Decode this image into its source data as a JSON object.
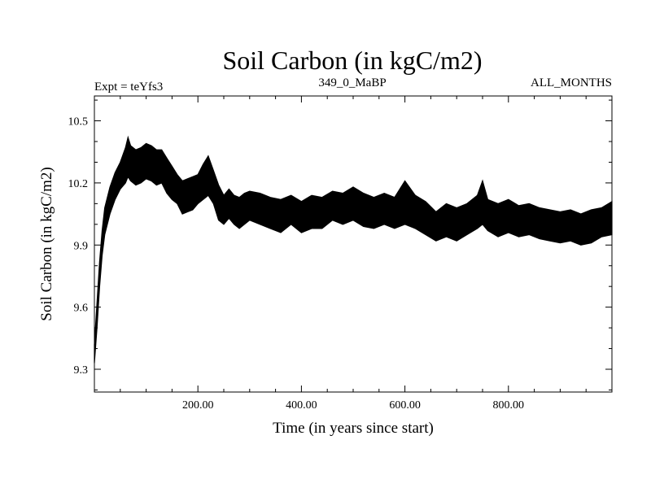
{
  "chart_data": {
    "type": "line",
    "title": "Soil Carbon (in kgC/m2)",
    "subtitle_left": "Expt = teYfs3",
    "subtitle_center": "349_0_MaBP",
    "subtitle_right": "ALL_MONTHS",
    "xlabel": "Time (in years since start)",
    "ylabel": "Soil Carbon (in kgC/m2)",
    "xlim": [
      0,
      1000
    ],
    "ylim": [
      9.19,
      10.62
    ],
    "xticks": [
      200,
      400,
      600,
      800
    ],
    "xtick_labels": [
      "200.00",
      "400.00",
      "600.00",
      "800.00"
    ],
    "yticks": [
      9.3,
      9.6,
      9.9,
      10.2,
      10.5
    ],
    "ytick_labels": [
      "9.3",
      "9.6",
      "9.9",
      "10.2",
      "10.5"
    ],
    "grid": false,
    "line_color": "#000000",
    "series": [
      {
        "x": [
          0,
          5,
          10,
          15,
          20,
          30,
          40,
          50,
          60,
          65,
          70,
          80,
          90,
          100,
          110,
          120,
          130,
          140,
          150,
          160,
          170,
          180,
          190,
          200,
          210,
          220,
          230,
          240,
          250,
          260,
          270,
          280,
          290,
          300,
          320,
          340,
          360,
          380,
          400,
          420,
          440,
          460,
          480,
          500,
          520,
          540,
          560,
          580,
          600,
          620,
          640,
          660,
          680,
          700,
          720,
          740,
          750,
          760,
          780,
          800,
          820,
          840,
          860,
          880,
          900,
          920,
          940,
          960,
          980,
          1000
        ],
        "y_low": [
          9.33,
          9.5,
          9.7,
          9.85,
          9.95,
          10.05,
          10.12,
          10.17,
          10.2,
          10.23,
          10.21,
          10.19,
          10.2,
          10.22,
          10.21,
          10.19,
          10.2,
          10.15,
          10.12,
          10.1,
          10.05,
          10.06,
          10.07,
          10.1,
          10.12,
          10.14,
          10.1,
          10.02,
          10.0,
          10.03,
          10.0,
          9.98,
          10.0,
          10.02,
          10.0,
          9.98,
          9.96,
          10.0,
          9.96,
          9.98,
          9.98,
          10.02,
          10.0,
          10.02,
          9.99,
          9.98,
          10.0,
          9.98,
          10.0,
          9.98,
          9.95,
          9.92,
          9.94,
          9.92,
          9.95,
          9.98,
          10.0,
          9.97,
          9.94,
          9.96,
          9.94,
          9.95,
          9.93,
          9.92,
          9.91,
          9.92,
          9.9,
          9.91,
          9.94,
          9.95
        ],
        "y_high": [
          9.42,
          9.62,
          9.82,
          9.97,
          10.08,
          10.18,
          10.25,
          10.3,
          10.37,
          10.42,
          10.38,
          10.36,
          10.37,
          10.39,
          10.38,
          10.36,
          10.36,
          10.32,
          10.28,
          10.24,
          10.21,
          10.22,
          10.23,
          10.24,
          10.29,
          10.33,
          10.26,
          10.19,
          10.14,
          10.17,
          10.14,
          10.13,
          10.15,
          10.16,
          10.15,
          10.13,
          10.12,
          10.14,
          10.11,
          10.14,
          10.13,
          10.16,
          10.15,
          10.18,
          10.15,
          10.13,
          10.15,
          10.13,
          10.21,
          10.14,
          10.11,
          10.06,
          10.1,
          10.08,
          10.1,
          10.14,
          10.21,
          10.12,
          10.1,
          10.12,
          10.09,
          10.1,
          10.08,
          10.07,
          10.06,
          10.07,
          10.05,
          10.07,
          10.08,
          10.11
        ]
      }
    ]
  }
}
